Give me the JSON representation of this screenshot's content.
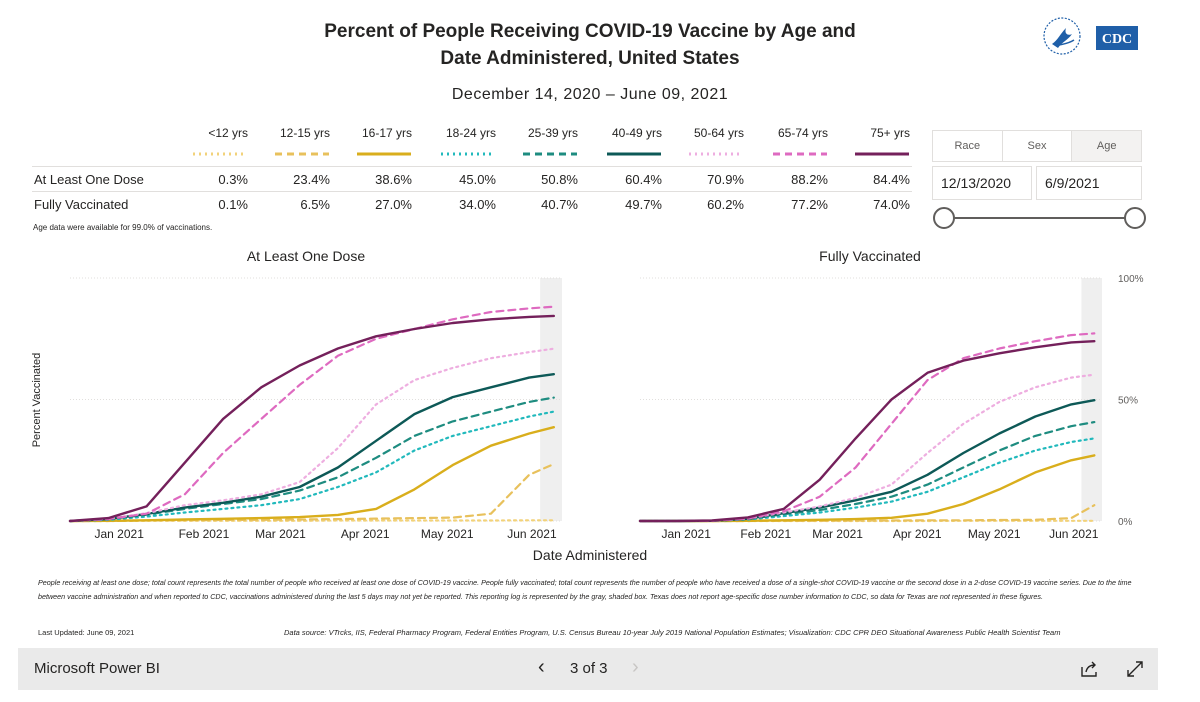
{
  "report": {
    "title_line1": "Percent of People Receiving COVID-19 Vaccine by Age and",
    "title_line2": "Date Administered, United States",
    "date_range": "December 14, 2020 – June 09, 2021",
    "logo_text": "CDC",
    "age_note": "Age data were available for 99.0% of vaccinations.",
    "footnote": "People receiving at least one dose; total count represents the total number of people who received at least one dose of COVID-19 vaccine. People fully vaccinated; total count represents the number of people who have received a dose of a single-shot COVID-19 vaccine or the second dose in a 2-dose COVID-19 vaccine series.  Due to the time between vaccine administration and when reported to CDC, vaccinations administered during the last 5 days may not yet be reported. This reporting log is represented by the gray, shaded box. Texas does not report age-specific dose number information to CDC, so data for Texas are not represented in these figures.",
    "last_updated": "Last Updated: June 09, 2021",
    "data_source": "Data source: VTrcks, IIS, Federal Pharmacy Program, Federal Entities Program, U.S. Census Bureau 10-year July 2019 National Population Estimates; Visualization: CDC CPR DEO Situational Awareness Public Health Scientist Team"
  },
  "legend_table": {
    "row_labels": [
      "At Least One Dose",
      "Fully Vaccinated"
    ],
    "groups": [
      {
        "label": "<12 yrs",
        "color": "#f2d27a",
        "dash": "dot",
        "one_dose": "0.3%",
        "fully": "0.1%"
      },
      {
        "label": "12-15 yrs",
        "color": "#e8c15c",
        "dash": "dash",
        "one_dose": "23.4%",
        "fully": "6.5%"
      },
      {
        "label": "16-17 yrs",
        "color": "#d9ae1c",
        "dash": "solid",
        "one_dose": "38.6%",
        "fully": "27.0%"
      },
      {
        "label": "18-24 yrs",
        "color": "#21b9bc",
        "dash": "dot",
        "one_dose": "45.0%",
        "fully": "34.0%"
      },
      {
        "label": "25-39 yrs",
        "color": "#1e8c80",
        "dash": "dash",
        "one_dose": "50.8%",
        "fully": "40.7%"
      },
      {
        "label": "40-49 yrs",
        "color": "#0d5957",
        "dash": "solid",
        "one_dose": "60.4%",
        "fully": "49.7%"
      },
      {
        "label": "50-64 yrs",
        "color": "#eeaee0",
        "dash": "dot",
        "one_dose": "70.9%",
        "fully": "60.2%"
      },
      {
        "label": "65-74 yrs",
        "color": "#de6ac0",
        "dash": "dash",
        "one_dose": "88.2%",
        "fully": "77.2%"
      },
      {
        "label": "75+ yrs",
        "color": "#74205b",
        "dash": "solid",
        "one_dose": "84.4%",
        "fully": "74.0%"
      }
    ]
  },
  "slicer": {
    "tabs": [
      "Race",
      "Sex",
      "Age"
    ],
    "selected_tab": "Age",
    "start_date": "12/13/2020",
    "end_date": "6/9/2021"
  },
  "chart_data": [
    {
      "type": "line",
      "title": "At Least One Dose",
      "ylabel": "Percent Vaccinated",
      "xlabel": "Date Administered",
      "x_ticks": [
        "Jan 2021",
        "Feb 2021",
        "Mar 2021",
        "Apr 2021",
        "May 2021",
        "Jun 2021"
      ],
      "y_ticks": [],
      "ylim": [
        0,
        100
      ],
      "x": [
        "2020-12-14",
        "2020-12-28",
        "2021-01-11",
        "2021-01-25",
        "2021-02-08",
        "2021-02-22",
        "2021-03-08",
        "2021-03-22",
        "2021-04-05",
        "2021-04-19",
        "2021-05-03",
        "2021-05-17",
        "2021-05-31",
        "2021-06-09"
      ],
      "series": [
        {
          "name": "<12 yrs",
          "values": [
            0,
            0,
            0.1,
            0.1,
            0.1,
            0.1,
            0.1,
            0.2,
            0.2,
            0.2,
            0.2,
            0.2,
            0.3,
            0.3
          ]
        },
        {
          "name": "12-15 yrs",
          "values": [
            0,
            0,
            0.2,
            0.3,
            0.4,
            0.5,
            0.6,
            0.8,
            1.0,
            1.2,
            1.4,
            3.0,
            19,
            23.4
          ]
        },
        {
          "name": "16-17 yrs",
          "values": [
            0,
            0.1,
            0.3,
            0.6,
            0.9,
            1.2,
            1.6,
            2.5,
            5,
            13,
            23,
            31,
            36,
            38.6
          ]
        },
        {
          "name": "18-24 yrs",
          "values": [
            0,
            0.5,
            1.8,
            3.5,
            5,
            6.5,
            9,
            14,
            20,
            29,
            35,
            39,
            43,
            45.0
          ]
        },
        {
          "name": "25-39 yrs",
          "values": [
            0,
            0.7,
            2.6,
            5,
            7,
            9,
            12.5,
            18,
            26,
            35,
            41,
            45,
            49,
            50.8
          ]
        },
        {
          "name": "40-49 yrs",
          "values": [
            0,
            0.8,
            2.9,
            5.5,
            7.5,
            10,
            14,
            22,
            33,
            44,
            51,
            55,
            59,
            60.4
          ]
        },
        {
          "name": "50-64 yrs",
          "values": [
            0,
            0.9,
            3.2,
            6.5,
            8.5,
            11,
            16,
            30,
            48,
            58,
            63,
            67,
            69.5,
            70.9
          ]
        },
        {
          "name": "65-74 yrs",
          "values": [
            0,
            0.8,
            3.0,
            11,
            28,
            42,
            56,
            68,
            75,
            79,
            83,
            86,
            87.5,
            88.2
          ]
        },
        {
          "name": "75+ yrs",
          "values": [
            0,
            1.2,
            6,
            24,
            42,
            55,
            64,
            71,
            76,
            79,
            81.5,
            83,
            84,
            84.4
          ]
        }
      ]
    },
    {
      "type": "line",
      "title": "Fully Vaccinated",
      "ylabel": "",
      "xlabel": "Date Administered",
      "x_ticks": [
        "Jan 2021",
        "Feb 2021",
        "Mar 2021",
        "Apr 2021",
        "May 2021",
        "Jun 2021"
      ],
      "y_ticks": [
        "0%",
        "50%",
        "100%"
      ],
      "ylim": [
        0,
        100
      ],
      "x": [
        "2020-12-14",
        "2020-12-28",
        "2021-01-11",
        "2021-01-25",
        "2021-02-08",
        "2021-02-22",
        "2021-03-08",
        "2021-03-22",
        "2021-04-05",
        "2021-04-19",
        "2021-05-03",
        "2021-05-17",
        "2021-05-31",
        "2021-06-09"
      ],
      "series": [
        {
          "name": "<12 yrs",
          "values": [
            0,
            0,
            0,
            0,
            0,
            0,
            0,
            0,
            0,
            0.1,
            0.1,
            0.1,
            0.1,
            0.1
          ]
        },
        {
          "name": "12-15 yrs",
          "values": [
            0,
            0,
            0,
            0,
            0.1,
            0.1,
            0.2,
            0.2,
            0.3,
            0.3,
            0.4,
            0.5,
            1.2,
            6.5
          ]
        },
        {
          "name": "16-17 yrs",
          "values": [
            0,
            0,
            0,
            0.1,
            0.3,
            0.5,
            0.8,
            1.3,
            3,
            7,
            13,
            20,
            25,
            27.0
          ]
        },
        {
          "name": "18-24 yrs",
          "values": [
            0,
            0,
            0.1,
            0.6,
            2,
            3.5,
            5.5,
            8,
            12,
            18,
            24,
            29,
            32.5,
            34.0
          ]
        },
        {
          "name": "25-39 yrs",
          "values": [
            0,
            0,
            0.1,
            0.8,
            2.8,
            4.5,
            7,
            10,
            15,
            22,
            29,
            35,
            39,
            40.7
          ]
        },
        {
          "name": "40-49 yrs",
          "values": [
            0,
            0,
            0.1,
            0.9,
            3.2,
            5.5,
            8.5,
            12,
            19,
            28,
            36,
            43,
            48,
            49.7
          ]
        },
        {
          "name": "50-64 yrs",
          "values": [
            0,
            0,
            0.1,
            1,
            3.5,
            6,
            9.5,
            15,
            28,
            40,
            49,
            55,
            59,
            60.2
          ]
        },
        {
          "name": "65-74 yrs",
          "values": [
            0,
            0,
            0.1,
            1,
            4,
            10,
            22,
            40,
            58,
            67,
            71,
            74,
            76.5,
            77.2
          ]
        },
        {
          "name": "75+ yrs",
          "values": [
            0,
            0,
            0.2,
            1.5,
            5,
            17,
            34,
            50,
            61,
            66,
            69,
            71.5,
            73.5,
            74.0
          ]
        }
      ]
    }
  ],
  "bottom_bar": {
    "brand": "Microsoft Power BI",
    "page_label": "3 of 3"
  }
}
